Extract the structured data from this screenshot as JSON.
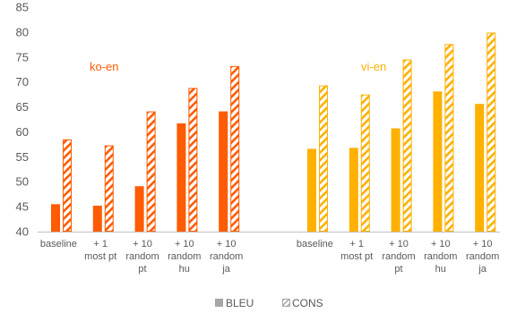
{
  "chart_data": {
    "type": "bar",
    "y_ticks": [
      "40",
      "45",
      "50",
      "55",
      "60",
      "65",
      "70",
      "75",
      "80",
      "85"
    ],
    "ylim": [
      40,
      85
    ],
    "grid": false,
    "legend_placement": "bottom-center",
    "legend": [
      {
        "name": "BLEU",
        "style": "solid"
      },
      {
        "name": "CONS",
        "style": "hatched"
      }
    ],
    "groups": [
      {
        "label": "ko-en",
        "color": "#FF5B00",
        "categories": [
          [
            "baseline"
          ],
          [
            "+ 1",
            "most pt"
          ],
          [
            "+ 10",
            "random",
            "pt"
          ],
          [
            "+ 10",
            "random",
            "hu"
          ],
          [
            "+ 10",
            "random",
            "ja"
          ]
        ],
        "series": [
          {
            "name": "BLEU",
            "values": [
              45.5,
              45.2,
              49.1,
              61.7,
              64.1
            ]
          },
          {
            "name": "CONS",
            "values": [
              58.5,
              57.3,
              64.1,
              68.8,
              73.2
            ]
          }
        ]
      },
      {
        "label": "vi-en",
        "color": "#FFB000",
        "categories": [
          [
            "baseline"
          ],
          [
            "+ 1",
            "most pt"
          ],
          [
            "+ 10",
            "random",
            "pt"
          ],
          [
            "+ 10",
            "random",
            "hu"
          ],
          [
            "+ 10",
            "random",
            "ja"
          ]
        ],
        "series": [
          {
            "name": "BLEU",
            "values": [
              56.6,
              56.8,
              60.7,
              68.1,
              65.6
            ]
          },
          {
            "name": "CONS",
            "values": [
              69.3,
              67.5,
              74.5,
              77.6,
              79.9
            ]
          }
        ]
      }
    ]
  },
  "colors": {
    "axis": "#BFBFBF",
    "text": "#595959",
    "legend_swatch": "#A6A6A6"
  }
}
